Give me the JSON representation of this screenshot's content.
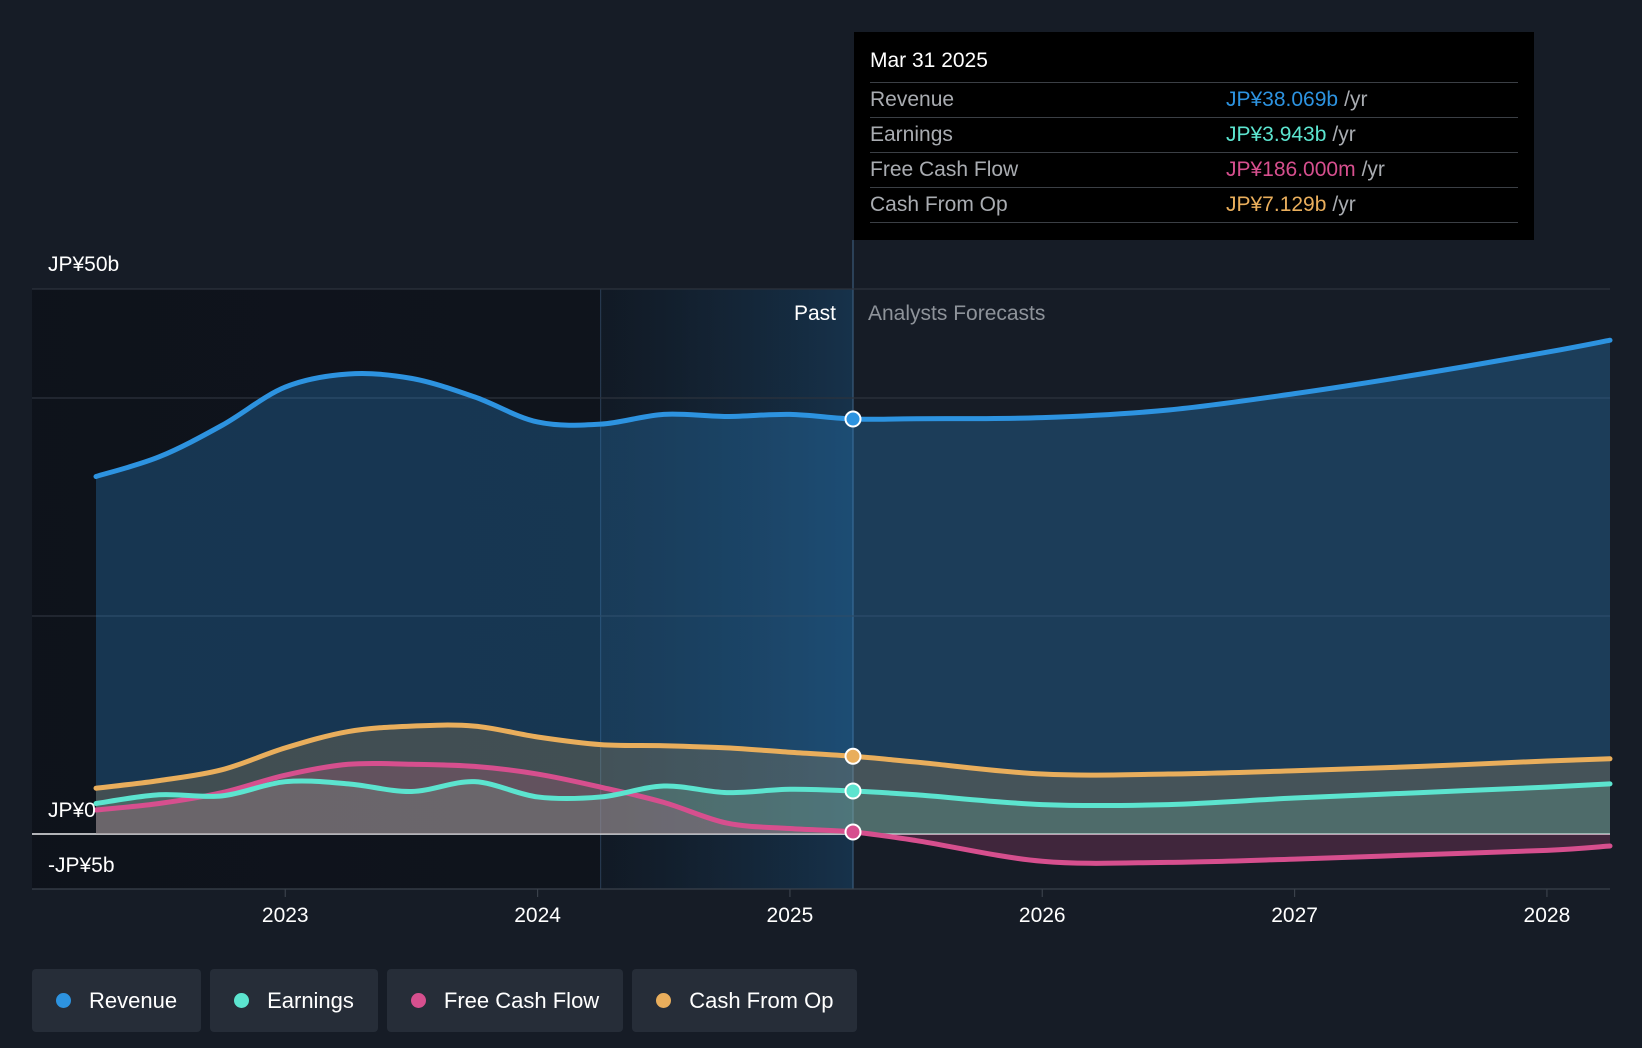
{
  "chart_data": {
    "type": "area",
    "y_unit_labels": {
      "top": "JP¥50b",
      "zero": "JP¥0",
      "bottom": "-JP¥5b"
    },
    "ylim": [
      -5,
      50
    ],
    "xlim": [
      2022.25,
      2028.25
    ],
    "x_ticks": [
      "2023",
      "2024",
      "2025",
      "2026",
      "2027",
      "2028"
    ],
    "grid": true,
    "past_label": "Past",
    "forecast_label": "Analysts Forecasts",
    "divider_x": 2025.25,
    "highlight_start": 2024.25,
    "series": [
      {
        "name": "Revenue",
        "color": "#2d93e0",
        "points": [
          [
            2022.25,
            32.8
          ],
          [
            2022.5,
            34.6
          ],
          [
            2022.75,
            37.5
          ],
          [
            2023.0,
            41.0
          ],
          [
            2023.25,
            42.2
          ],
          [
            2023.5,
            41.8
          ],
          [
            2023.75,
            40.1
          ],
          [
            2024.0,
            37.8
          ],
          [
            2024.25,
            37.6
          ],
          [
            2024.5,
            38.5
          ],
          [
            2024.75,
            38.3
          ],
          [
            2025.0,
            38.5
          ],
          [
            2025.25,
            38.069
          ],
          [
            2025.5,
            38.1
          ],
          [
            2026.0,
            38.2
          ],
          [
            2026.5,
            38.9
          ],
          [
            2027.0,
            40.4
          ],
          [
            2027.5,
            42.2
          ],
          [
            2028.0,
            44.2
          ],
          [
            2028.25,
            45.3
          ]
        ]
      },
      {
        "name": "Earnings",
        "color": "#5ce4cf",
        "points": [
          [
            2022.25,
            2.8
          ],
          [
            2022.5,
            3.6
          ],
          [
            2022.75,
            3.5
          ],
          [
            2023.0,
            4.8
          ],
          [
            2023.25,
            4.6
          ],
          [
            2023.5,
            3.9
          ],
          [
            2023.75,
            4.8
          ],
          [
            2024.0,
            3.4
          ],
          [
            2024.25,
            3.4
          ],
          [
            2024.5,
            4.4
          ],
          [
            2024.75,
            3.8
          ],
          [
            2025.0,
            4.1
          ],
          [
            2025.25,
            3.943
          ],
          [
            2025.5,
            3.6
          ],
          [
            2026.0,
            2.7
          ],
          [
            2026.5,
            2.7
          ],
          [
            2027.0,
            3.3
          ],
          [
            2027.5,
            3.8
          ],
          [
            2028.0,
            4.3
          ],
          [
            2028.25,
            4.6
          ]
        ]
      },
      {
        "name": "Free Cash Flow",
        "color": "#d64f8e",
        "points": [
          [
            2022.25,
            2.2
          ],
          [
            2022.5,
            2.8
          ],
          [
            2022.75,
            3.8
          ],
          [
            2023.0,
            5.4
          ],
          [
            2023.25,
            6.4
          ],
          [
            2023.5,
            6.4
          ],
          [
            2023.75,
            6.2
          ],
          [
            2024.0,
            5.5
          ],
          [
            2024.25,
            4.3
          ],
          [
            2024.5,
            2.9
          ],
          [
            2024.75,
            1.0
          ],
          [
            2025.0,
            0.5
          ],
          [
            2025.25,
            0.186
          ],
          [
            2025.5,
            -0.6
          ],
          [
            2026.0,
            -2.5
          ],
          [
            2026.5,
            -2.6
          ],
          [
            2027.0,
            -2.3
          ],
          [
            2027.5,
            -1.9
          ],
          [
            2028.0,
            -1.5
          ],
          [
            2028.25,
            -1.1
          ]
        ]
      },
      {
        "name": "Cash From Op",
        "color": "#e9ae5c",
        "points": [
          [
            2022.25,
            4.2
          ],
          [
            2022.5,
            4.9
          ],
          [
            2022.75,
            5.9
          ],
          [
            2023.0,
            7.9
          ],
          [
            2023.25,
            9.4
          ],
          [
            2023.5,
            9.9
          ],
          [
            2023.75,
            9.9
          ],
          [
            2024.0,
            8.9
          ],
          [
            2024.25,
            8.2
          ],
          [
            2024.5,
            8.1
          ],
          [
            2024.75,
            7.9
          ],
          [
            2025.0,
            7.5
          ],
          [
            2025.25,
            7.129
          ],
          [
            2025.5,
            6.6
          ],
          [
            2026.0,
            5.5
          ],
          [
            2026.5,
            5.5
          ],
          [
            2027.0,
            5.8
          ],
          [
            2027.5,
            6.2
          ],
          [
            2028.0,
            6.7
          ],
          [
            2028.25,
            6.9
          ]
        ]
      }
    ]
  },
  "tooltip": {
    "date": "Mar 31 2025",
    "rows": [
      {
        "label": "Revenue",
        "value": "JP¥38.069b",
        "unit": "/yr",
        "color": "#2d93e0"
      },
      {
        "label": "Earnings",
        "value": "JP¥3.943b",
        "unit": "/yr",
        "color": "#5ce4cf"
      },
      {
        "label": "Free Cash Flow",
        "value": "JP¥186.000m",
        "unit": "/yr",
        "color": "#d64f8e"
      },
      {
        "label": "Cash From Op",
        "value": "JP¥7.129b",
        "unit": "/yr",
        "color": "#e9ae5c"
      }
    ]
  },
  "legend": [
    {
      "label": "Revenue",
      "color": "#2d93e0"
    },
    {
      "label": "Earnings",
      "color": "#5ce4cf"
    },
    {
      "label": "Free Cash Flow",
      "color": "#d64f8e"
    },
    {
      "label": "Cash From Op",
      "color": "#e9ae5c"
    }
  ]
}
